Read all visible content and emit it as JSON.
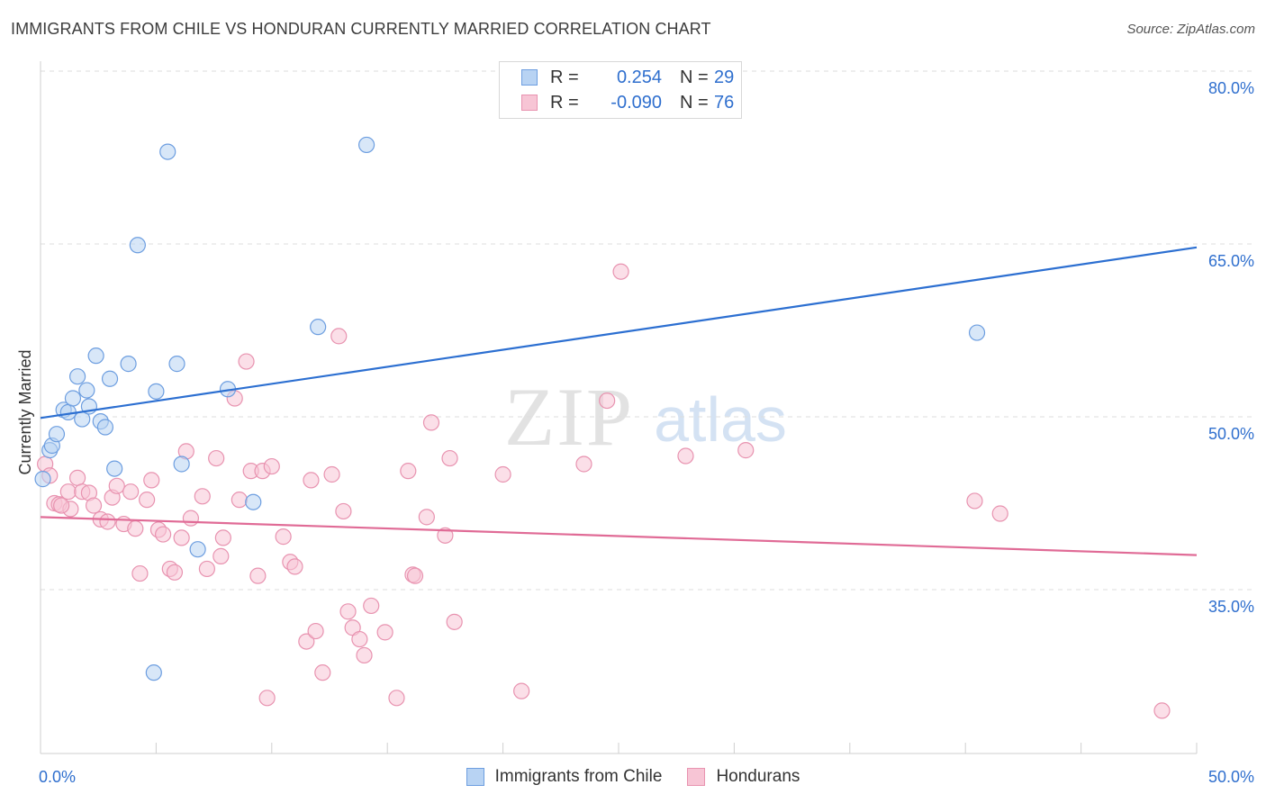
{
  "title": "IMMIGRANTS FROM CHILE VS HONDURAN CURRENTLY MARRIED CORRELATION CHART",
  "source": "Source: ZipAtlas.com",
  "watermark": {
    "zip": "ZIP",
    "atlas": "atlas"
  },
  "colors": {
    "blue_fill": "#b8d3f3",
    "blue_stroke": "#6d9ee0",
    "blue_line": "#2c6fd1",
    "pink_fill": "#f7c5d5",
    "pink_stroke": "#e893b0",
    "pink_line": "#e06b96",
    "grid": "#dddddd",
    "axis_label": "#2f6fce"
  },
  "legend_top": {
    "rows": [
      {
        "swatch": "blue",
        "r_label": "R =",
        "r_value": "0.254",
        "n_label": "N =",
        "n_value": "29"
      },
      {
        "swatch": "pink",
        "r_label": "R =",
        "r_value": "-0.090",
        "n_label": "N =",
        "n_value": "76"
      }
    ]
  },
  "bottom_legend": [
    {
      "swatch": "blue",
      "label": "Immigrants from Chile"
    },
    {
      "swatch": "pink",
      "label": "Hondurans"
    }
  ],
  "chart_data": {
    "type": "scatter",
    "title": "IMMIGRANTS FROM CHILE VS HONDURAN CURRENTLY MARRIED CORRELATION CHART",
    "xlabel": "",
    "ylabel": "Currently Married",
    "xlim": [
      0,
      50
    ],
    "ylim": [
      20.5,
      83
    ],
    "x_tick_labels": [
      {
        "value": 0,
        "label": "0.0%"
      },
      {
        "value": 50,
        "label": "50.0%"
      }
    ],
    "y_tick_labels": [
      {
        "value": 80,
        "label": "80.0%"
      },
      {
        "value": 65,
        "label": "65.0%"
      },
      {
        "value": 50,
        "label": "50.0%"
      },
      {
        "value": 35,
        "label": "35.0%"
      }
    ],
    "x_minor_ticks": [
      0,
      5,
      10,
      15,
      20,
      25,
      30,
      35,
      40,
      45,
      50
    ],
    "grid": true,
    "series": [
      {
        "name": "Immigrants from Chile",
        "color": "blue",
        "R": 0.254,
        "N": 29,
        "trend": {
          "x": [
            0,
            50
          ],
          "y": [
            49.9,
            64.7
          ]
        },
        "points": [
          [
            0.1,
            44.6
          ],
          [
            0.4,
            47.1
          ],
          [
            0.5,
            47.5
          ],
          [
            0.7,
            48.5
          ],
          [
            1.0,
            50.6
          ],
          [
            1.2,
            50.4
          ],
          [
            1.4,
            51.6
          ],
          [
            1.6,
            53.5
          ],
          [
            1.8,
            49.8
          ],
          [
            2.0,
            52.3
          ],
          [
            2.1,
            50.9
          ],
          [
            2.4,
            55.3
          ],
          [
            2.6,
            49.6
          ],
          [
            2.8,
            49.1
          ],
          [
            3.0,
            53.3
          ],
          [
            3.2,
            45.5
          ],
          [
            3.8,
            54.6
          ],
          [
            4.2,
            64.9
          ],
          [
            4.9,
            27.8
          ],
          [
            5.0,
            52.2
          ],
          [
            5.5,
            73.0
          ],
          [
            5.9,
            54.6
          ],
          [
            6.1,
            45.9
          ],
          [
            6.8,
            38.5
          ],
          [
            8.1,
            52.4
          ],
          [
            9.2,
            42.6
          ],
          [
            12.0,
            57.8
          ],
          [
            14.1,
            73.6
          ],
          [
            40.5,
            57.3
          ]
        ]
      },
      {
        "name": "Hondurans",
        "color": "pink",
        "R": -0.09,
        "N": 76,
        "trend": {
          "x": [
            0,
            50
          ],
          "y": [
            41.3,
            38.0
          ]
        },
        "points": [
          [
            0.2,
            45.9
          ],
          [
            0.4,
            44.9
          ],
          [
            0.6,
            42.5
          ],
          [
            0.8,
            42.4
          ],
          [
            1.2,
            43.5
          ],
          [
            1.3,
            42.0
          ],
          [
            1.6,
            44.7
          ],
          [
            1.8,
            43.5
          ],
          [
            2.1,
            43.4
          ],
          [
            2.3,
            42.3
          ],
          [
            2.6,
            41.1
          ],
          [
            2.9,
            40.9
          ],
          [
            3.1,
            43.0
          ],
          [
            3.3,
            44.0
          ],
          [
            3.6,
            40.7
          ],
          [
            3.9,
            43.5
          ],
          [
            4.1,
            40.3
          ],
          [
            4.3,
            36.4
          ],
          [
            4.6,
            42.8
          ],
          [
            4.8,
            44.5
          ],
          [
            5.1,
            40.2
          ],
          [
            5.3,
            39.8
          ],
          [
            5.6,
            36.8
          ],
          [
            5.8,
            36.5
          ],
          [
            6.1,
            39.5
          ],
          [
            6.3,
            47.0
          ],
          [
            6.5,
            41.2
          ],
          [
            7.0,
            43.1
          ],
          [
            7.2,
            36.8
          ],
          [
            7.6,
            46.4
          ],
          [
            7.8,
            37.9
          ],
          [
            7.9,
            39.5
          ],
          [
            8.4,
            51.6
          ],
          [
            8.6,
            42.8
          ],
          [
            8.9,
            54.8
          ],
          [
            9.1,
            45.3
          ],
          [
            9.4,
            36.2
          ],
          [
            9.6,
            45.3
          ],
          [
            9.8,
            25.6
          ],
          [
            10.0,
            45.7
          ],
          [
            10.5,
            39.6
          ],
          [
            10.8,
            37.4
          ],
          [
            11.0,
            37.0
          ],
          [
            11.5,
            30.5
          ],
          [
            11.7,
            44.5
          ],
          [
            11.9,
            31.4
          ],
          [
            12.2,
            27.8
          ],
          [
            12.6,
            45.0
          ],
          [
            12.9,
            57.0
          ],
          [
            13.1,
            41.8
          ],
          [
            13.3,
            33.1
          ],
          [
            13.5,
            31.7
          ],
          [
            13.8,
            30.7
          ],
          [
            14.0,
            29.3
          ],
          [
            14.3,
            33.6
          ],
          [
            14.9,
            31.3
          ],
          [
            15.4,
            25.6
          ],
          [
            15.9,
            45.3
          ],
          [
            16.1,
            36.3
          ],
          [
            16.2,
            36.2
          ],
          [
            16.7,
            41.3
          ],
          [
            16.9,
            49.5
          ],
          [
            17.5,
            39.7
          ],
          [
            17.7,
            46.4
          ],
          [
            17.9,
            32.2
          ],
          [
            20.0,
            45.0
          ],
          [
            20.8,
            26.2
          ],
          [
            23.5,
            45.9
          ],
          [
            24.5,
            51.4
          ],
          [
            25.1,
            62.6
          ],
          [
            27.9,
            46.6
          ],
          [
            30.5,
            47.1
          ],
          [
            40.4,
            42.7
          ],
          [
            41.5,
            41.6
          ],
          [
            48.5,
            24.5
          ],
          [
            0.9,
            42.3
          ]
        ]
      }
    ]
  }
}
